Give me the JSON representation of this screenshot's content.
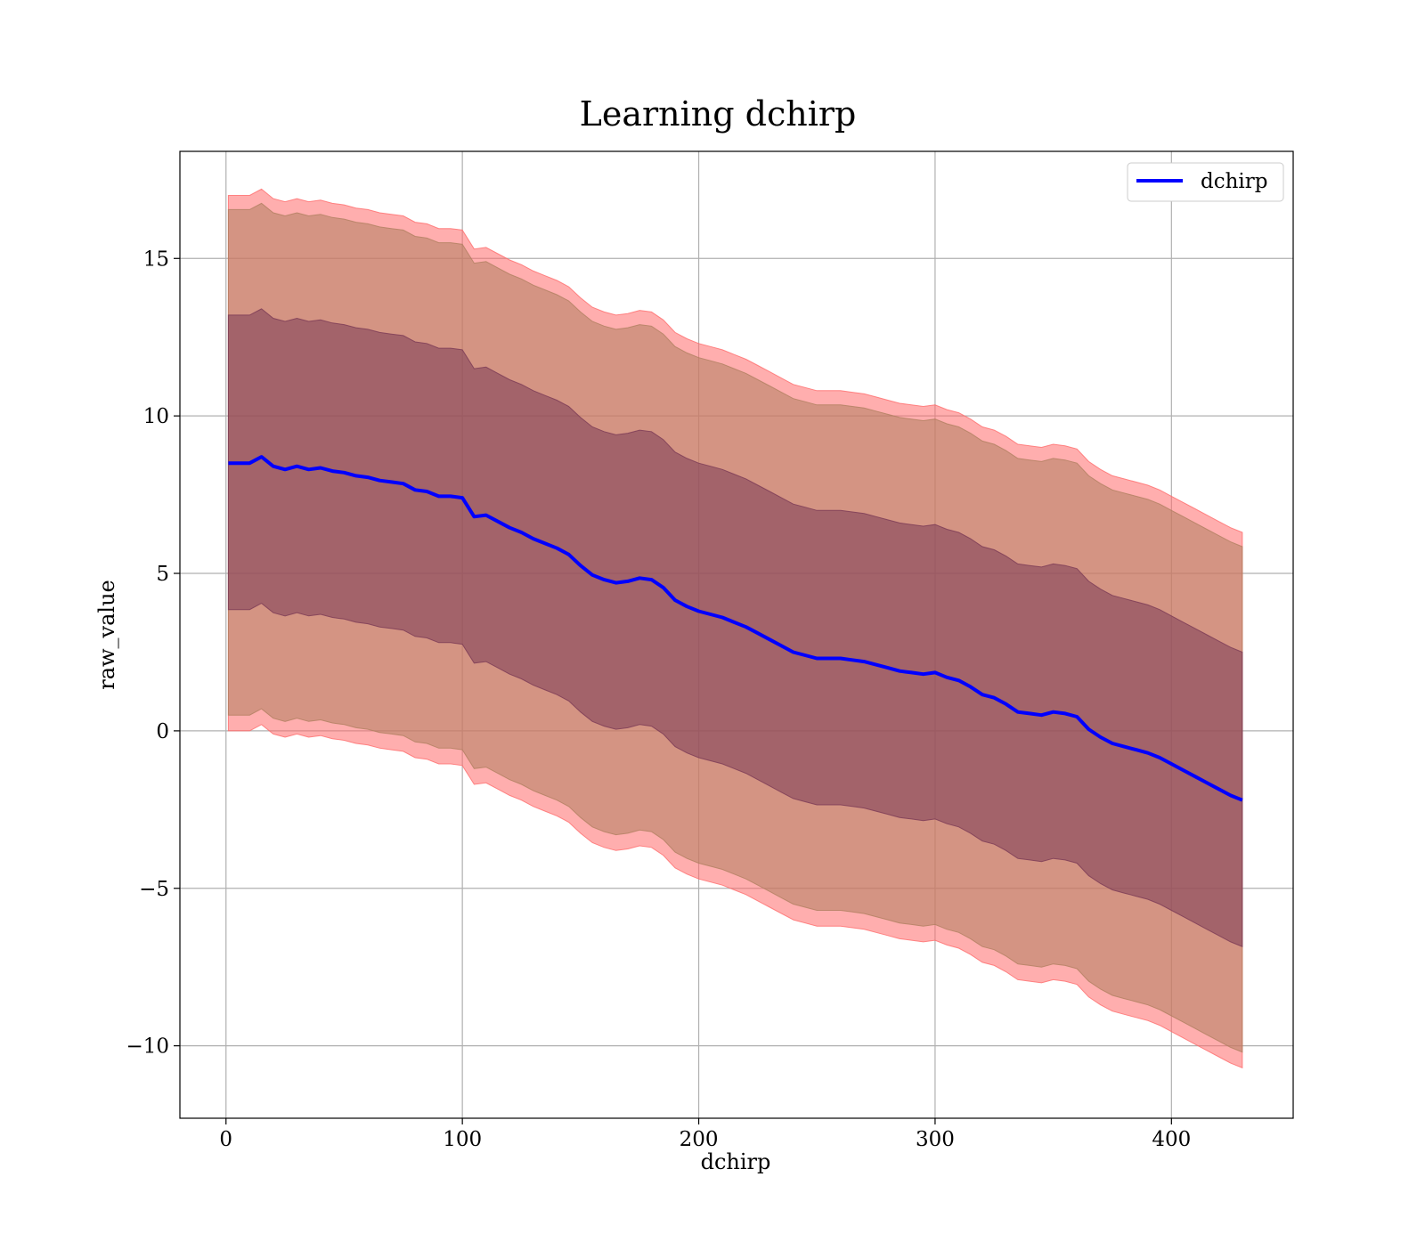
{
  "chart_data": {
    "type": "line",
    "title": "Learning dchirp",
    "xlabel": "dchirp",
    "ylabel": "raw_value",
    "xlim": [
      -19.5,
      451.5
    ],
    "ylim": [
      -12.3,
      18.4
    ],
    "grid": true,
    "legend": {
      "placement": "top-right",
      "entries": [
        "dchirp"
      ]
    },
    "x_ticks": [
      0,
      100,
      200,
      300,
      400
    ],
    "x_tick_labels": [
      "0",
      "100",
      "200",
      "300",
      "400"
    ],
    "y_ticks": [
      -10,
      -5,
      0,
      5,
      10,
      15
    ],
    "y_tick_labels": [
      "−10",
      "−5",
      "0",
      "5",
      "10",
      "15"
    ],
    "x": [
      1,
      5,
      10,
      15,
      20,
      25,
      30,
      35,
      40,
      45,
      50,
      55,
      60,
      65,
      70,
      75,
      80,
      85,
      90,
      95,
      100,
      105,
      110,
      115,
      120,
      125,
      130,
      135,
      140,
      145,
      150,
      155,
      160,
      165,
      170,
      175,
      180,
      185,
      190,
      195,
      200,
      205,
      210,
      215,
      220,
      225,
      230,
      235,
      240,
      245,
      250,
      255,
      260,
      265,
      270,
      275,
      280,
      285,
      290,
      295,
      300,
      305,
      310,
      315,
      320,
      325,
      330,
      335,
      340,
      345,
      350,
      355,
      360,
      365,
      370,
      375,
      380,
      385,
      390,
      395,
      400,
      405,
      410,
      415,
      420,
      425,
      430
    ],
    "series": [
      {
        "name": "dchirp",
        "color": "#0000ff",
        "values": [
          8.5,
          8.5,
          8.5,
          8.7,
          8.4,
          8.3,
          8.4,
          8.3,
          8.35,
          8.25,
          8.2,
          8.1,
          8.05,
          7.95,
          7.9,
          7.85,
          7.65,
          7.6,
          7.45,
          7.45,
          7.4,
          6.8,
          6.85,
          6.65,
          6.45,
          6.3,
          6.1,
          5.95,
          5.8,
          5.6,
          5.25,
          4.95,
          4.8,
          4.7,
          4.75,
          4.85,
          4.8,
          4.55,
          4.15,
          3.95,
          3.8,
          3.7,
          3.6,
          3.45,
          3.3,
          3.1,
          2.9,
          2.7,
          2.5,
          2.4,
          2.3,
          2.3,
          2.3,
          2.25,
          2.2,
          2.1,
          2.0,
          1.9,
          1.85,
          1.8,
          1.85,
          1.7,
          1.6,
          1.4,
          1.15,
          1.05,
          0.85,
          0.6,
          0.55,
          0.5,
          0.6,
          0.55,
          0.45,
          0.05,
          -0.2,
          -0.4,
          -0.5,
          -0.6,
          -0.7,
          -0.85,
          -1.05,
          -1.25,
          -1.45,
          -1.65,
          -1.85,
          -2.05,
          -2.2
        ]
      }
    ],
    "bands": [
      {
        "color": "#ff6b6b",
        "label": "",
        "offset_lower": -8.5,
        "offset_upper": 8.5
      },
      {
        "color": "#b08060",
        "label": "",
        "offset_lower": -8.0,
        "offset_upper": 8.05
      },
      {
        "color": "#7a3a55",
        "label": "",
        "offset_lower": -4.65,
        "offset_upper": 4.7
      }
    ]
  }
}
